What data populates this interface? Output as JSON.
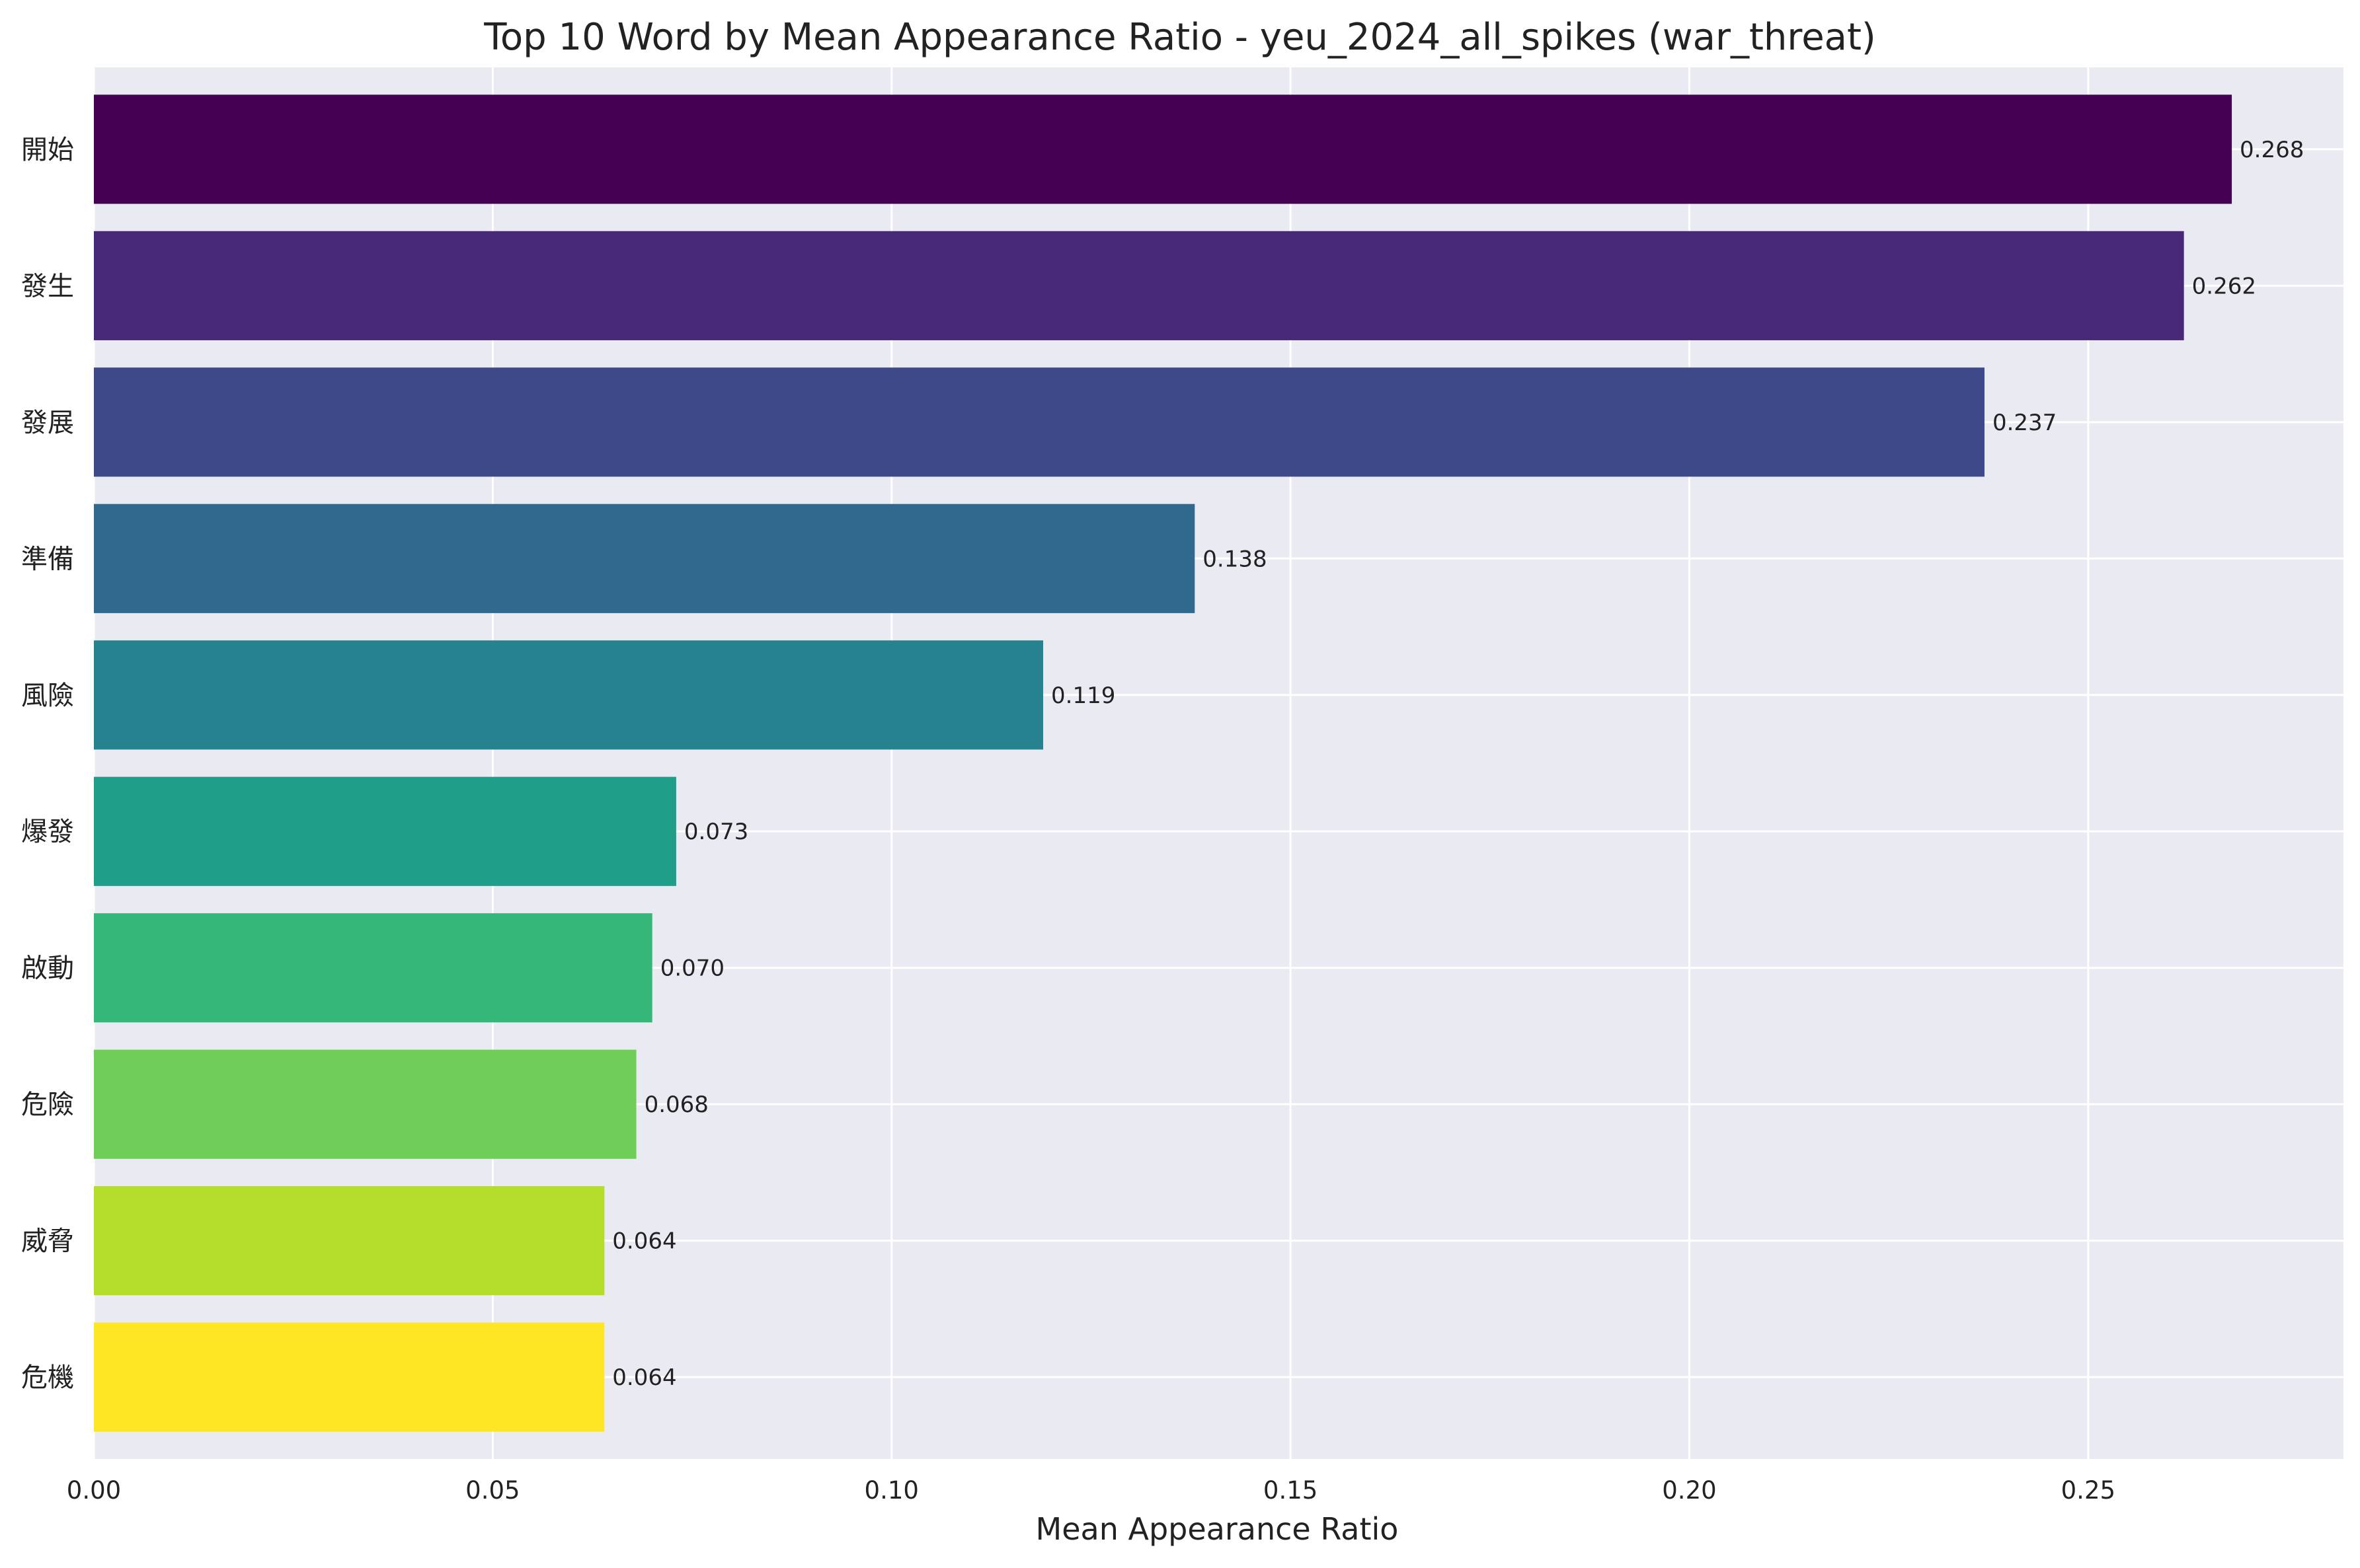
{
  "chart_data": {
    "type": "bar",
    "orientation": "horizontal",
    "title": "Top 10 Word by Mean Appearance Ratio - yeu_2024_all_spikes (war_threat)",
    "xlabel": "Mean Appearance Ratio",
    "ylabel": "",
    "categories": [
      "開始",
      "發生",
      "發展",
      "準備",
      "風險",
      "爆發",
      "啟動",
      "危險",
      "威脅",
      "危機"
    ],
    "values": [
      0.268,
      0.262,
      0.237,
      0.138,
      0.119,
      0.073,
      0.07,
      0.068,
      0.064,
      0.064
    ],
    "value_labels": [
      "0.268",
      "0.262",
      "0.237",
      "0.138",
      "0.119",
      "0.073",
      "0.070",
      "0.068",
      "0.064",
      "0.064"
    ],
    "colors": [
      "#440154",
      "#482878",
      "#3e4989",
      "#31688e",
      "#26828e",
      "#1f9e89",
      "#35b779",
      "#6ece58",
      "#b5de2b",
      "#fde725"
    ],
    "xlim": [
      0,
      0.282
    ],
    "xticks": [
      0,
      0.05,
      0.1,
      0.15,
      0.2,
      0.25
    ],
    "xtick_labels": [
      "0.00",
      "0.05",
      "0.10",
      "0.15",
      "0.20",
      "0.25"
    ],
    "grid": true,
    "legend": "none",
    "background": "#eaeaf2",
    "grid_color": "#ffffff"
  }
}
